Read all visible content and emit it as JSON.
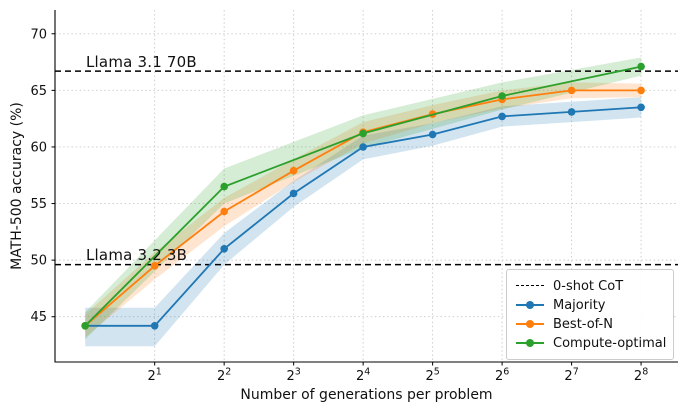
{
  "figure": {
    "background": "#ffffff",
    "text_color": "#111111"
  },
  "chart_data": {
    "type": "line",
    "title": "",
    "xlabel": "Number of generations per problem",
    "ylabel": "MATH-500 accuracy (%)",
    "x_scale": "log2",
    "xlim": [
      0.74,
      370
    ],
    "ylim": [
      41.0,
      72.1
    ],
    "y_ticks": [
      45,
      50,
      55,
      60,
      65,
      70
    ],
    "x_ticks": [
      {
        "value": 2,
        "base": "2",
        "exponent": "1"
      },
      {
        "value": 4,
        "base": "2",
        "exponent": "2"
      },
      {
        "value": 8,
        "base": "2",
        "exponent": "3"
      },
      {
        "value": 16,
        "base": "2",
        "exponent": "4"
      },
      {
        "value": 32,
        "base": "2",
        "exponent": "5"
      },
      {
        "value": 64,
        "base": "2",
        "exponent": "6"
      },
      {
        "value": 128,
        "base": "2",
        "exponent": "7"
      },
      {
        "value": 256,
        "base": "2",
        "exponent": "8"
      }
    ],
    "grid": {
      "visible": true,
      "style": "dotted",
      "color": "#c9c9c9"
    },
    "reference_lines": [
      {
        "label": "Llama 3.1 70B",
        "y": 66.7,
        "color": "#000000",
        "style": "dashed"
      },
      {
        "label": "Llama 3.2 3B",
        "y": 49.6,
        "color": "#000000",
        "style": "dashed"
      }
    ],
    "series": [
      {
        "name": "Majority",
        "color": "#1f77b4",
        "marker": "circle",
        "x": [
          1,
          2,
          4,
          8,
          16,
          32,
          64,
          128,
          256
        ],
        "y": [
          44.2,
          44.2,
          51.0,
          55.9,
          60.0,
          61.1,
          62.7,
          63.1,
          63.5
        ],
        "band_lower": [
          42.4,
          42.4,
          49.6,
          54.7,
          58.9,
          60.1,
          61.8,
          62.2,
          62.6
        ],
        "band_upper": [
          45.8,
          45.8,
          52.4,
          57.0,
          61.0,
          62.1,
          63.6,
          64.0,
          64.4
        ]
      },
      {
        "name": "Best-of-N",
        "color": "#ff7f0e",
        "marker": "circle",
        "x": [
          1,
          2,
          4,
          8,
          16,
          32,
          64,
          128,
          256
        ],
        "y": [
          44.2,
          49.5,
          54.3,
          57.9,
          61.3,
          62.9,
          64.2,
          65.0,
          65.0
        ],
        "band_lower": [
          43.2,
          48.3,
          53.0,
          56.9,
          60.3,
          62.1,
          63.4,
          64.3,
          64.4
        ],
        "band_upper": [
          45.2,
          50.7,
          55.5,
          58.9,
          62.2,
          63.7,
          65.0,
          65.7,
          65.6
        ]
      },
      {
        "name": "Compute-optimal",
        "color": "#2ca02c",
        "marker": "circle",
        "x": [
          1,
          4,
          16,
          64,
          256
        ],
        "y": [
          44.2,
          56.5,
          61.2,
          64.5,
          67.1
        ],
        "band_lower": [
          43.0,
          55.0,
          59.9,
          63.3,
          66.3
        ],
        "band_upper": [
          45.4,
          58.1,
          62.8,
          65.7,
          67.9
        ]
      }
    ],
    "legend": {
      "position": "lower-right",
      "entries": [
        {
          "label": "0-shot CoT",
          "color": "#000000",
          "sample": "dashed-line"
        },
        {
          "label": "Majority",
          "color": "#1f77b4",
          "sample": "line-marker"
        },
        {
          "label": "Best-of-N",
          "color": "#ff7f0e",
          "sample": "line-marker"
        },
        {
          "label": "Compute-optimal",
          "color": "#2ca02c",
          "sample": "line-marker"
        }
      ]
    }
  }
}
